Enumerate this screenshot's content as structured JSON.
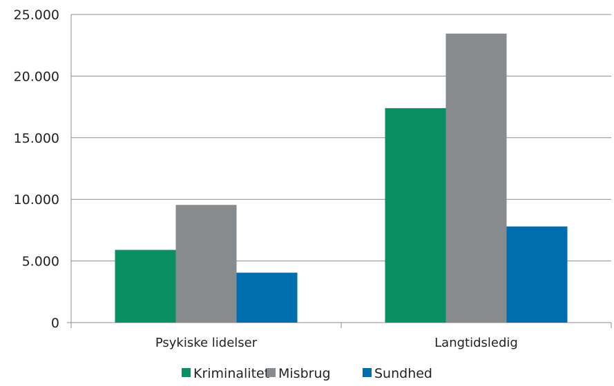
{
  "chart_data": {
    "type": "bar",
    "categories": [
      "Psykiske lidelser",
      "Langtidsledig"
    ],
    "series": [
      {
        "name": "Kriminalitet",
        "values": [
          5900,
          17400
        ],
        "color": "#0a8f62"
      },
      {
        "name": "Misbrug",
        "values": [
          9550,
          23450
        ],
        "color": "#888b8d"
      },
      {
        "name": "Sundhed",
        "values": [
          4050,
          7800
        ],
        "color": "#006eae"
      }
    ],
    "ylim": [
      0,
      25000
    ],
    "yticks": [
      0,
      5000,
      10000,
      15000,
      20000,
      25000
    ],
    "ytick_labels": [
      "0",
      "5.000",
      "10.000",
      "15.000",
      "20.000",
      "25.000"
    ],
    "grid": true,
    "legend_position": "bottom"
  }
}
